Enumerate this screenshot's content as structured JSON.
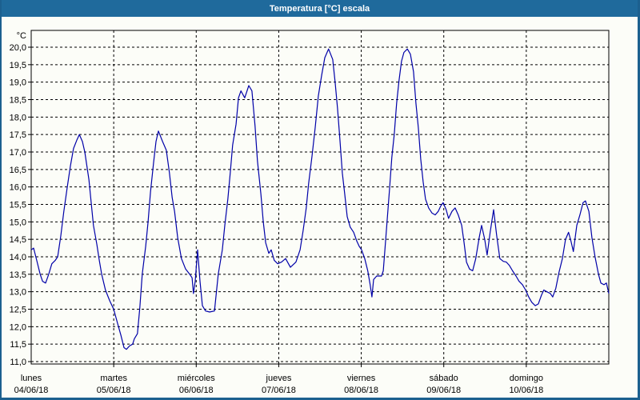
{
  "window": {
    "title": "Temperatura [°C] escala"
  },
  "colors": {
    "titlebar_bg": "#1f6a9c",
    "window_border": "#1c608f",
    "background": "#fcfdf8",
    "grid": "#000000",
    "text": "#000000",
    "line": "#0000a8"
  },
  "chart_data": {
    "type": "line",
    "title": "Temperatura [°C] escala",
    "y_unit_label": "°C",
    "ylim": [
      11.0,
      20.0
    ],
    "y_tick_step": 0.5,
    "y_tick_labels": [
      "20,0",
      "19,5",
      "19,0",
      "18,5",
      "18,0",
      "17,5",
      "17,0",
      "16,5",
      "16,0",
      "15,5",
      "15,0",
      "14,5",
      "14,0",
      "13,5",
      "13,0",
      "12,5",
      "12,0",
      "11,5",
      "11,0"
    ],
    "grid": "dashed",
    "legend_position": "none",
    "x_hours_total": 168,
    "x_days": [
      {
        "label": "lunes",
        "date": "04/06/18"
      },
      {
        "label": "martes",
        "date": "05/06/18"
      },
      {
        "label": "miércoles",
        "date": "06/06/18"
      },
      {
        "label": "jueves",
        "date": "07/06/18"
      },
      {
        "label": "viernes",
        "date": "08/06/18"
      },
      {
        "label": "sábado",
        "date": "09/06/18"
      },
      {
        "label": "domingo",
        "date": "10/06/18"
      }
    ],
    "series": [
      {
        "name": "Temperatura",
        "color": "#0000a8",
        "points": [
          [
            0,
            14.2
          ],
          [
            0.7,
            14.25
          ],
          [
            1.6,
            13.9
          ],
          [
            2.6,
            13.5
          ],
          [
            3.3,
            13.3
          ],
          [
            4.2,
            13.25
          ],
          [
            5.1,
            13.5
          ],
          [
            6,
            13.8
          ],
          [
            7,
            13.9
          ],
          [
            7.7,
            14.0
          ],
          [
            8.6,
            14.6
          ],
          [
            9.5,
            15.3
          ],
          [
            10.5,
            16.0
          ],
          [
            11.4,
            16.6
          ],
          [
            12.3,
            17.1
          ],
          [
            13.3,
            17.35
          ],
          [
            14,
            17.5
          ],
          [
            14.9,
            17.3
          ],
          [
            15.6,
            17.0
          ],
          [
            16.8,
            16.2
          ],
          [
            17.5,
            15.5
          ],
          [
            18.1,
            14.9
          ],
          [
            19.1,
            14.35
          ],
          [
            19.8,
            13.9
          ],
          [
            20.5,
            13.5
          ],
          [
            21.6,
            13.05
          ],
          [
            22.8,
            12.75
          ],
          [
            24,
            12.5
          ],
          [
            25.1,
            12.1
          ],
          [
            26.1,
            11.75
          ],
          [
            27,
            11.4
          ],
          [
            27.7,
            11.35
          ],
          [
            28.6,
            11.45
          ],
          [
            29.5,
            11.5
          ],
          [
            30,
            11.65
          ],
          [
            30.9,
            11.8
          ],
          [
            31.6,
            12.55
          ],
          [
            32.3,
            13.5
          ],
          [
            33.3,
            14.3
          ],
          [
            34,
            15.0
          ],
          [
            34.7,
            15.85
          ],
          [
            35.6,
            16.7
          ],
          [
            36.3,
            17.3
          ],
          [
            37,
            17.6
          ],
          [
            38.2,
            17.3
          ],
          [
            39.3,
            17.05
          ],
          [
            40.2,
            16.4
          ],
          [
            41,
            15.7
          ],
          [
            41.7,
            15.3
          ],
          [
            42.6,
            14.55
          ],
          [
            43.7,
            13.95
          ],
          [
            44.9,
            13.65
          ],
          [
            46.1,
            13.5
          ],
          [
            46.8,
            13.4
          ],
          [
            47.2,
            12.95
          ],
          [
            47.7,
            13.3
          ],
          [
            48.4,
            14.2
          ],
          [
            49.1,
            13.3
          ],
          [
            49.8,
            12.6
          ],
          [
            50.7,
            12.45
          ],
          [
            51.9,
            12.42
          ],
          [
            53.3,
            12.45
          ],
          [
            54.4,
            13.5
          ],
          [
            55.6,
            14.2
          ],
          [
            56.3,
            14.9
          ],
          [
            57.2,
            15.65
          ],
          [
            57.9,
            16.4
          ],
          [
            58.6,
            17.2
          ],
          [
            59.6,
            17.8
          ],
          [
            60.3,
            18.55
          ],
          [
            61,
            18.75
          ],
          [
            62.1,
            18.55
          ],
          [
            63.3,
            18.9
          ],
          [
            64.2,
            18.75
          ],
          [
            65.1,
            17.75
          ],
          [
            65.8,
            16.75
          ],
          [
            66.8,
            15.8
          ],
          [
            67.5,
            15.0
          ],
          [
            68.2,
            14.4
          ],
          [
            69.1,
            14.1
          ],
          [
            69.8,
            14.2
          ],
          [
            70.7,
            13.9
          ],
          [
            71.7,
            13.8
          ],
          [
            72.8,
            13.85
          ],
          [
            74,
            13.95
          ],
          [
            75.4,
            13.7
          ],
          [
            77,
            13.85
          ],
          [
            78.2,
            14.2
          ],
          [
            79.1,
            14.75
          ],
          [
            80,
            15.4
          ],
          [
            80.7,
            16.1
          ],
          [
            81.7,
            16.9
          ],
          [
            82.6,
            17.7
          ],
          [
            83.5,
            18.6
          ],
          [
            84.5,
            19.2
          ],
          [
            85.4,
            19.7
          ],
          [
            86.5,
            19.95
          ],
          [
            87.7,
            19.65
          ],
          [
            88.4,
            19.0
          ],
          [
            89.1,
            18.25
          ],
          [
            89.8,
            17.35
          ],
          [
            90.5,
            16.4
          ],
          [
            91.2,
            15.8
          ],
          [
            91.9,
            15.15
          ],
          [
            92.8,
            14.85
          ],
          [
            93.8,
            14.7
          ],
          [
            94.7,
            14.45
          ],
          [
            95.4,
            14.3
          ],
          [
            96.1,
            14.2
          ],
          [
            97,
            13.95
          ],
          [
            97.9,
            13.6
          ],
          [
            98.6,
            13.2
          ],
          [
            99.1,
            12.85
          ],
          [
            99.6,
            13.35
          ],
          [
            100.5,
            13.45
          ],
          [
            101.9,
            13.45
          ],
          [
            102.4,
            13.6
          ],
          [
            102.8,
            14.1
          ],
          [
            103.5,
            15.0
          ],
          [
            104.2,
            15.9
          ],
          [
            104.9,
            16.85
          ],
          [
            105.6,
            17.5
          ],
          [
            106.3,
            18.4
          ],
          [
            107,
            19.05
          ],
          [
            107.7,
            19.6
          ],
          [
            108.4,
            19.85
          ],
          [
            109.4,
            19.95
          ],
          [
            110.3,
            19.8
          ],
          [
            111.2,
            19.3
          ],
          [
            111.9,
            18.4
          ],
          [
            112.6,
            17.7
          ],
          [
            113.3,
            16.8
          ],
          [
            114,
            16.15
          ],
          [
            114.7,
            15.65
          ],
          [
            115.6,
            15.4
          ],
          [
            116.6,
            15.25
          ],
          [
            117.5,
            15.2
          ],
          [
            118.4,
            15.3
          ],
          [
            119.1,
            15.45
          ],
          [
            119.8,
            15.55
          ],
          [
            120.7,
            15.35
          ],
          [
            121.4,
            15.1
          ],
          [
            122.4,
            15.3
          ],
          [
            123.3,
            15.4
          ],
          [
            124.2,
            15.2
          ],
          [
            125.2,
            14.9
          ],
          [
            125.9,
            14.4
          ],
          [
            126.6,
            13.85
          ],
          [
            127.5,
            13.65
          ],
          [
            128.4,
            13.6
          ],
          [
            129.3,
            13.95
          ],
          [
            130.3,
            14.55
          ],
          [
            131,
            14.9
          ],
          [
            131.9,
            14.5
          ],
          [
            132.6,
            14.05
          ],
          [
            133.5,
            14.7
          ],
          [
            134.5,
            15.35
          ],
          [
            135.4,
            14.6
          ],
          [
            136.3,
            13.95
          ],
          [
            137.3,
            13.87
          ],
          [
            138.2,
            13.85
          ],
          [
            139.1,
            13.75
          ],
          [
            140,
            13.6
          ],
          [
            141,
            13.45
          ],
          [
            141.9,
            13.3
          ],
          [
            142.9,
            13.2
          ],
          [
            143.8,
            13.05
          ],
          [
            144.7,
            12.85
          ],
          [
            145.6,
            12.7
          ],
          [
            146.6,
            12.6
          ],
          [
            147.5,
            12.65
          ],
          [
            148.4,
            12.9
          ],
          [
            149.1,
            13.05
          ],
          [
            150,
            13.0
          ],
          [
            151,
            12.95
          ],
          [
            151.7,
            12.85
          ],
          [
            152.6,
            13.1
          ],
          [
            153.5,
            13.55
          ],
          [
            154.5,
            13.95
          ],
          [
            155.4,
            14.5
          ],
          [
            156.3,
            14.7
          ],
          [
            157,
            14.45
          ],
          [
            157.7,
            14.15
          ],
          [
            158.7,
            14.9
          ],
          [
            159.6,
            15.2
          ],
          [
            160.5,
            15.55
          ],
          [
            161.2,
            15.6
          ],
          [
            162.2,
            15.3
          ],
          [
            163.1,
            14.55
          ],
          [
            164,
            14.0
          ],
          [
            165,
            13.5
          ],
          [
            165.7,
            13.25
          ],
          [
            166.6,
            13.2
          ],
          [
            167.3,
            13.25
          ],
          [
            168,
            12.95
          ]
        ]
      }
    ]
  }
}
